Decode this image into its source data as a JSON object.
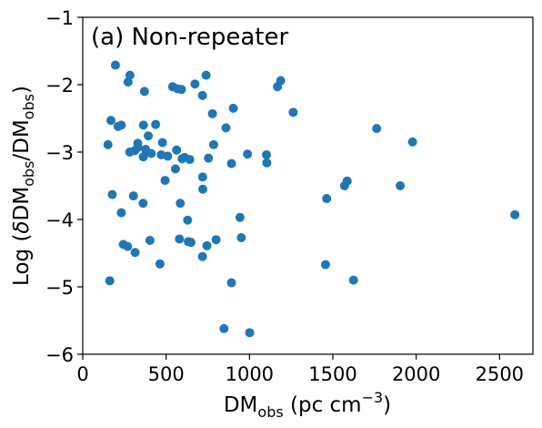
{
  "chart_data": {
    "type": "scatter",
    "title": "(a) Non-repeater",
    "xlabel": {
      "main": "DM",
      "sub": "obs",
      "unit_open": " (pc cm",
      "unit_sup": "−3",
      "unit_close": ")"
    },
    "ylabel": {
      "pre": "Log (",
      "delta": "δ",
      "dm1": "DM",
      "sub1": "obs",
      "slash": "/DM",
      "sub2": "obs",
      "close": ")"
    },
    "xlim": [
      0,
      2700
    ],
    "ylim": [
      -6,
      -1
    ],
    "xticks": [
      0,
      500,
      1000,
      1500,
      2000,
      2500
    ],
    "yticks": [
      -6,
      -5,
      -4,
      -3,
      -2,
      -1
    ],
    "grid": false,
    "colors": {
      "marker": "#1f77b4",
      "axes": "#000000"
    },
    "series": [
      {
        "x": [
          196,
          283,
          272,
          370,
          539,
          568,
          592,
          740,
          673,
          718,
          903,
          778,
          1187,
          1168,
          1262,
          169,
          231,
          212,
          437,
          364,
          330,
          393,
          411,
          478,
          377,
          494,
          556,
          563,
          610,
          642,
          151,
          282,
          311,
          330,
          363,
          471,
          509,
          596,
          719,
          754,
          785,
          859,
          892,
          988,
          1102,
          1104,
          1763,
          1978,
          177,
          304,
          362,
          585,
          231,
          629,
          720,
          943,
          1463,
          1586,
          1570,
          1904,
          2592,
          403,
          649,
          243,
          269,
          314,
          580,
          633,
          745,
          800,
          951,
          718,
          463,
          1456,
          1624,
          162,
          892,
          847,
          1001
        ],
        "y": [
          -1.71,
          -1.86,
          -1.96,
          -2.1,
          -2.03,
          -2.06,
          -2.07,
          -1.86,
          -1.99,
          -2.16,
          -2.35,
          -2.43,
          -1.94,
          -2.03,
          -2.41,
          -2.53,
          -2.6,
          -2.62,
          -2.59,
          -2.6,
          -2.87,
          -2.76,
          -3.02,
          -2.86,
          -2.96,
          -3.42,
          -3.25,
          -2.97,
          -3.08,
          -3.11,
          -2.89,
          -3.0,
          -2.98,
          -2.93,
          -3.07,
          -3.04,
          -3.06,
          -3.1,
          -3.37,
          -3.09,
          -2.89,
          -2.64,
          -3.17,
          -3.03,
          -3.04,
          -3.16,
          -2.65,
          -2.85,
          -3.63,
          -3.65,
          -3.76,
          -3.76,
          -3.9,
          -4.01,
          -3.55,
          -3.97,
          -3.69,
          -3.43,
          -3.5,
          -3.5,
          -3.93,
          -4.31,
          -4.34,
          -4.37,
          -4.4,
          -4.49,
          -4.29,
          -4.33,
          -4.39,
          -4.3,
          -4.27,
          -4.55,
          -4.66,
          -4.67,
          -4.9,
          -4.91,
          -4.94,
          -5.62,
          -5.68
        ]
      }
    ]
  }
}
